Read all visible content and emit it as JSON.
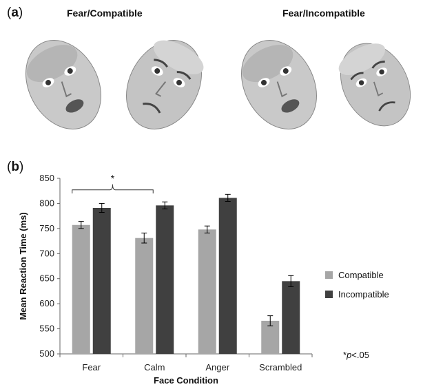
{
  "panel_a": {
    "label_open": "(",
    "label_letter": "a",
    "label_close": ")",
    "titles": [
      "Fear/Compatible",
      "Fear/Incompatible"
    ]
  },
  "panel_b": {
    "label_open": "(",
    "label_letter": "b",
    "label_close": ")",
    "significance_star": "*",
    "note_star": "*",
    "note_p": "p",
    "note_rest": "<.05"
  },
  "chart_data": {
    "type": "bar",
    "categories": [
      "Fear",
      "Calm",
      "Anger",
      "Scrambled"
    ],
    "series": [
      {
        "name": "Compatible",
        "values": [
          757,
          731,
          748,
          566
        ],
        "errors": [
          7,
          10,
          7,
          10
        ],
        "color": "#a6a6a6"
      },
      {
        "name": "Incompatible",
        "values": [
          791,
          796,
          811,
          645
        ],
        "errors": [
          9,
          7,
          7,
          11
        ],
        "color": "#404040"
      }
    ],
    "xlabel": "Face Condition",
    "ylabel": "Mean Reaction Time (ms)",
    "ylim": [
      500,
      850
    ],
    "yticks": [
      500,
      550,
      600,
      650,
      700,
      750,
      800,
      850
    ],
    "grid": false,
    "legend": "right"
  }
}
